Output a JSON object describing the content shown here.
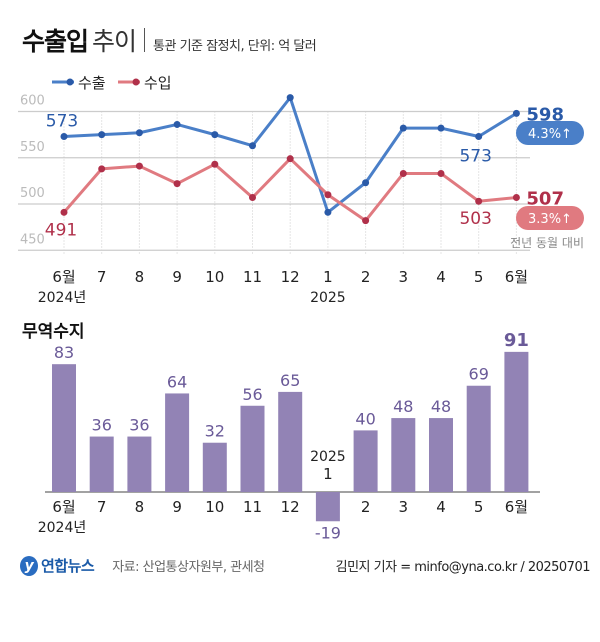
{
  "header": {
    "title_bold": "수출입",
    "title_light": "추이",
    "subtitle": "통관 기준 잠정치, 단위: 억 달러"
  },
  "footer": {
    "logo": "연합뉴스",
    "source": "자료: 산업통상자원부, 관세청",
    "credit": "김민지 기자 = minfo@yna.co.kr / 20250701"
  },
  "colors": {
    "export": "#4a7fc8",
    "import": "#e07a80",
    "export_label": "#2a5aa8",
    "import_label": "#b0304a",
    "bar": "#9283b5",
    "bar_label": "#6a5a98",
    "grid": "#cccccc"
  },
  "chart_data": [
    {
      "type": "line",
      "legend": [
        "수출",
        "수입"
      ],
      "legend_placement": "top-left",
      "categories": [
        "6월",
        "7",
        "8",
        "9",
        "10",
        "11",
        "12",
        "1",
        "2",
        "3",
        "4",
        "5",
        "6월"
      ],
      "year_labels": [
        {
          "index": 0,
          "text": "2024년"
        },
        {
          "index": 7,
          "text": "2025"
        }
      ],
      "yticks": [
        450,
        500,
        550,
        600
      ],
      "ylim": [
        440,
        620
      ],
      "grid": true,
      "series": [
        {
          "name": "수출",
          "values": [
            573,
            575,
            577,
            586,
            575,
            563,
            615,
            491,
            523,
            582,
            582,
            573,
            598
          ]
        },
        {
          "name": "수입",
          "values": [
            491,
            538,
            541,
            522,
            543,
            507,
            549,
            510,
            482,
            533,
            533,
            503,
            507
          ]
        }
      ],
      "annotations": {
        "export_first": "573",
        "export_prev": "573",
        "export_last": "598",
        "export_change": "4.3%↑",
        "import_first": "491",
        "import_prev": "503",
        "import_last": "507",
        "import_change": "3.3%↑",
        "change_note": "전년 동월 대비"
      }
    },
    {
      "type": "bar",
      "title": "무역수지",
      "categories": [
        "6월",
        "7",
        "8",
        "9",
        "10",
        "11",
        "12",
        "1",
        "2",
        "3",
        "4",
        "5",
        "6월"
      ],
      "year_labels": [
        {
          "index": 0,
          "text": "2024년"
        },
        {
          "index": 7,
          "text": "2025"
        }
      ],
      "values": [
        83,
        36,
        36,
        64,
        32,
        56,
        65,
        -19,
        40,
        48,
        48,
        69,
        91
      ]
    }
  ]
}
